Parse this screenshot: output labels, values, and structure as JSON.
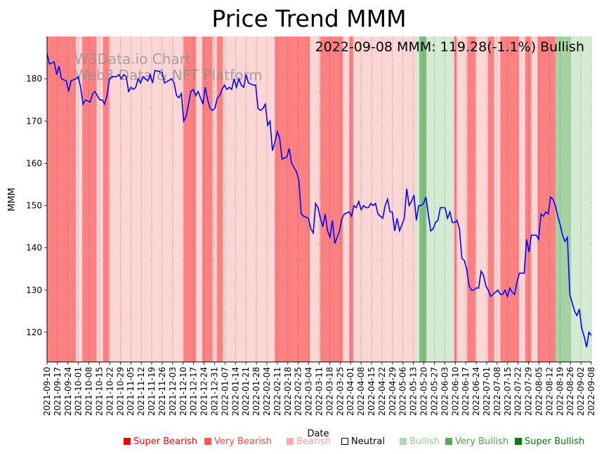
{
  "chart_data": {
    "type": "line",
    "title": "Price Trend MMM",
    "annotation": "2022-09-08 MMM: 119.28(-1.1%) Bullish",
    "watermark": [
      "W3Data.io Chart",
      "Web3 Data & NFT Platform"
    ],
    "xlabel": "Date",
    "ylabel": "MMM",
    "ylim": [
      113,
      190
    ],
    "yticks": [
      120,
      130,
      140,
      150,
      160,
      170,
      180
    ],
    "x_start": "2021-09-10",
    "x_end": "2022-09-08",
    "xtick_labels": [
      "2021-09-10",
      "2021-09-17",
      "2021-09-24",
      "2021-10-01",
      "2021-10-08",
      "2021-10-15",
      "2021-10-22",
      "2021-10-29",
      "2021-11-05",
      "2021-11-12",
      "2021-11-19",
      "2021-11-26",
      "2021-12-03",
      "2021-12-10",
      "2021-12-17",
      "2021-12-24",
      "2021-12-31",
      "2022-01-07",
      "2022-01-14",
      "2022-01-21",
      "2022-01-28",
      "2022-02-04",
      "2022-02-11",
      "2022-02-18",
      "2022-02-25",
      "2022-03-04",
      "2022-03-11",
      "2022-03-18",
      "2022-03-25",
      "2022-04-01",
      "2022-04-08",
      "2022-04-15",
      "2022-04-22",
      "2022-04-29",
      "2022-05-06",
      "2022-05-13",
      "2022-05-20",
      "2022-05-27",
      "2022-06-03",
      "2022-06-10",
      "2022-06-17",
      "2022-06-24",
      "2022-07-01",
      "2022-07-08",
      "2022-07-15",
      "2022-07-22",
      "2022-07-29",
      "2022-08-05",
      "2022-08-12",
      "2022-08-19",
      "2022-08-26",
      "2022-09-02",
      "2022-09-08"
    ],
    "series": [
      {
        "name": "MMM",
        "color": "#0000ff",
        "points": [
          [
            0,
            186
          ],
          [
            1,
            183.5
          ],
          [
            3,
            184
          ],
          [
            4,
            181
          ],
          [
            5,
            183
          ],
          [
            6,
            180
          ],
          [
            8,
            179.5
          ],
          [
            9,
            177
          ],
          [
            10,
            179.5
          ],
          [
            12,
            180
          ],
          [
            13,
            180.5
          ],
          [
            14,
            178
          ],
          [
            15,
            174
          ],
          [
            16,
            175
          ],
          [
            18,
            174.5
          ],
          [
            19,
            176.5
          ],
          [
            20,
            177
          ],
          [
            22,
            175
          ],
          [
            23,
            175
          ],
          [
            24,
            174
          ],
          [
            25,
            176
          ],
          [
            26,
            180
          ],
          [
            27,
            180.5
          ],
          [
            29,
            180.5
          ],
          [
            30,
            181
          ],
          [
            31,
            180
          ],
          [
            32,
            181
          ],
          [
            33,
            180.5
          ],
          [
            34,
            177
          ],
          [
            35,
            178
          ],
          [
            36,
            177.5
          ],
          [
            37,
            178
          ],
          [
            38,
            180
          ],
          [
            39,
            179
          ],
          [
            40,
            180.5
          ],
          [
            41,
            180
          ],
          [
            42,
            179.5
          ],
          [
            43,
            181
          ],
          [
            44,
            179
          ],
          [
            45,
            182
          ],
          [
            48,
            181.5
          ],
          [
            49,
            179
          ],
          [
            52,
            180
          ],
          [
            53,
            179
          ],
          [
            54,
            176
          ],
          [
            55,
            175.5
          ],
          [
            56,
            176.5
          ],
          [
            57,
            170
          ],
          [
            58,
            171
          ],
          [
            59,
            174
          ],
          [
            60,
            177
          ],
          [
            61,
            177.5
          ],
          [
            62,
            176
          ],
          [
            63,
            177
          ],
          [
            64,
            175.5
          ],
          [
            65,
            174
          ],
          [
            66,
            178
          ],
          [
            67,
            175
          ],
          [
            68,
            173
          ],
          [
            69,
            172.5
          ],
          [
            70,
            173
          ],
          [
            71,
            175.5
          ],
          [
            72,
            176
          ],
          [
            73,
            177.5
          ],
          [
            74,
            178.5
          ],
          [
            75,
            177.5
          ],
          [
            76,
            178
          ],
          [
            77,
            177.5
          ],
          [
            78,
            180
          ],
          [
            79,
            178
          ],
          [
            80,
            180
          ],
          [
            81,
            178.5
          ],
          [
            82,
            178
          ],
          [
            83,
            181
          ],
          [
            84,
            179
          ],
          [
            86,
            178.5
          ],
          [
            87,
            178.5
          ],
          [
            88,
            173
          ],
          [
            89,
            172.5
          ],
          [
            90,
            173
          ],
          [
            91,
            174
          ],
          [
            92,
            169
          ],
          [
            93,
            170
          ],
          [
            94,
            163
          ],
          [
            95,
            165
          ],
          [
            96,
            167.5
          ],
          [
            97,
            166
          ],
          [
            98,
            161
          ],
          [
            100,
            161.5
          ],
          [
            101,
            163.5
          ],
          [
            102,
            160
          ],
          [
            103,
            159
          ],
          [
            104,
            158
          ],
          [
            105,
            156
          ],
          [
            106,
            148
          ],
          [
            107,
            147.5
          ],
          [
            109,
            147
          ],
          [
            110,
            144.5
          ],
          [
            111,
            143.5
          ],
          [
            112,
            150.5
          ],
          [
            113,
            149.5
          ],
          [
            114,
            147
          ],
          [
            115,
            145
          ],
          [
            116,
            148
          ],
          [
            117,
            144
          ],
          [
            118,
            142.5
          ],
          [
            119,
            146.5
          ],
          [
            120,
            141
          ],
          [
            121,
            142.5
          ],
          [
            122,
            144
          ],
          [
            123,
            147
          ],
          [
            124,
            148
          ],
          [
            126,
            148.5
          ],
          [
            127,
            147.5
          ],
          [
            128,
            150
          ],
          [
            129,
            149.5
          ],
          [
            130,
            151
          ],
          [
            131,
            149
          ],
          [
            132,
            150
          ],
          [
            133,
            149.5
          ],
          [
            134,
            149.5
          ],
          [
            135,
            150.5
          ],
          [
            136,
            150
          ],
          [
            137,
            150.5
          ],
          [
            138,
            148
          ],
          [
            139,
            147.5
          ],
          [
            140,
            147
          ],
          [
            141,
            150
          ],
          [
            142,
            151.5
          ],
          [
            143,
            148.5
          ],
          [
            144,
            148.5
          ],
          [
            145,
            144
          ],
          [
            146,
            147
          ],
          [
            147,
            144
          ],
          [
            148,
            145.5
          ],
          [
            149,
            147
          ],
          [
            150,
            154
          ],
          [
            151,
            150
          ],
          [
            152,
            151
          ],
          [
            153,
            152.5
          ],
          [
            154,
            146.5
          ],
          [
            155,
            150
          ],
          [
            156,
            150
          ],
          [
            157,
            150.5
          ],
          [
            158,
            152
          ],
          [
            159,
            148
          ],
          [
            160,
            144
          ],
          [
            161,
            144.5
          ],
          [
            162,
            146
          ],
          [
            163,
            146.5
          ],
          [
            164,
            149.5
          ],
          [
            166,
            149.5
          ],
          [
            167,
            147
          ],
          [
            168,
            148.5
          ],
          [
            169,
            146
          ],
          [
            170,
            146
          ],
          [
            171,
            146.5
          ],
          [
            172,
            144.5
          ],
          [
            173,
            137.5
          ],
          [
            174,
            137
          ],
          [
            175,
            135
          ],
          [
            176,
            131
          ],
          [
            177,
            130
          ],
          [
            178,
            130
          ],
          [
            179,
            130.5
          ],
          [
            180,
            130.5
          ],
          [
            181,
            134.5
          ],
          [
            182,
            133.5
          ],
          [
            183,
            131
          ],
          [
            184,
            130
          ],
          [
            185,
            128.5
          ],
          [
            186,
            129
          ],
          [
            187,
            129.5
          ],
          [
            188,
            130
          ],
          [
            189,
            129
          ],
          [
            190,
            129
          ],
          [
            191,
            130
          ],
          [
            192,
            128.5
          ],
          [
            193,
            130.5
          ],
          [
            194,
            129.5
          ],
          [
            195,
            129
          ],
          [
            196,
            132
          ],
          [
            197,
            134
          ],
          [
            198,
            134
          ],
          [
            199,
            134
          ],
          [
            200,
            142
          ],
          [
            201,
            139
          ],
          [
            202,
            143
          ],
          [
            204,
            143
          ],
          [
            205,
            142
          ],
          [
            206,
            148
          ],
          [
            207,
            147.5
          ],
          [
            208,
            148.5
          ],
          [
            209,
            148
          ],
          [
            210,
            152
          ],
          [
            211,
            151.5
          ],
          [
            212,
            150
          ],
          [
            213,
            147.5
          ],
          [
            214,
            145.5
          ],
          [
            215,
            143
          ],
          [
            216,
            141.5
          ],
          [
            217,
            142.5
          ],
          [
            218,
            129
          ],
          [
            219,
            127
          ],
          [
            220,
            125
          ],
          [
            221,
            124
          ],
          [
            222,
            125.5
          ],
          [
            223,
            121
          ],
          [
            224,
            119
          ],
          [
            225,
            116.5
          ],
          [
            226,
            120
          ],
          [
            227,
            119.3
          ]
        ]
      }
    ],
    "sentiment_bands": [
      {
        "from": 0,
        "to": 14,
        "level": "very-bearish"
      },
      {
        "from": 14,
        "to": 17,
        "level": "bearish"
      },
      {
        "from": 17,
        "to": 24,
        "level": "very-bearish"
      },
      {
        "from": 24,
        "to": 27,
        "level": "bearish"
      },
      {
        "from": 27,
        "to": 30,
        "level": "very-bearish"
      },
      {
        "from": 30,
        "to": 66,
        "level": "bearish"
      },
      {
        "from": 66,
        "to": 72,
        "level": "very-bearish"
      },
      {
        "from": 72,
        "to": 75,
        "level": "bearish"
      },
      {
        "from": 75,
        "to": 80,
        "level": "very-bearish"
      },
      {
        "from": 80,
        "to": 82,
        "level": "bearish"
      },
      {
        "from": 82,
        "to": 85,
        "level": "very-bearish"
      },
      {
        "from": 85,
        "to": 110,
        "level": "bearish"
      },
      {
        "from": 110,
        "to": 127,
        "level": "very-bearish"
      },
      {
        "from": 127,
        "to": 132,
        "level": "bearish"
      },
      {
        "from": 132,
        "to": 143,
        "level": "very-bearish"
      },
      {
        "from": 143,
        "to": 146,
        "level": "bearish"
      },
      {
        "from": 146,
        "to": 148,
        "level": "very-bearish"
      },
      {
        "from": 148,
        "to": 183,
        "level": "bearish"
      },
      {
        "from": 183,
        "to": 186,
        "level": "very-bearish"
      },
      {
        "from": 186,
        "to": 190,
        "level": "bearish"
      },
      {
        "from": 190,
        "to": 198,
        "level": "very-bearish"
      },
      {
        "from": 198,
        "to": 203,
        "level": "bearish"
      },
      {
        "from": 203,
        "to": 207,
        "level": "very-bearish"
      },
      {
        "from": 207,
        "to": 213,
        "level": "bearish"
      },
      {
        "from": 213,
        "to": 216,
        "level": "very-bearish"
      },
      {
        "from": 216,
        "to": 219,
        "level": "bearish"
      },
      {
        "from": 219,
        "to": 228,
        "level": "very-bearish"
      },
      {
        "from": 228,
        "to": 231,
        "level": "bearish"
      },
      {
        "from": 231,
        "to": 234,
        "level": "very-bearish"
      },
      {
        "from": 234,
        "to": 237,
        "level": "bearish"
      },
      {
        "from": 237,
        "to": 248,
        "level": "very-bearish"
      },
      {
        "from": 248,
        "to": 250,
        "level": "bearish"
      },
      {
        "from": 250,
        "to": 257,
        "level": "very-bearish"
      },
      {
        "from": 257,
        "to": 260,
        "level": "bearish"
      },
      {
        "from": 260,
        "to": 263,
        "level": "very-bearish"
      },
      {
        "from": 263,
        "to": 263,
        "level": "bearish"
      }
    ],
    "legend": [
      {
        "label": "Super Bearish",
        "color": "#ff0000",
        "text_color": "#ff0000"
      },
      {
        "label": "Very Bearish",
        "color": "#ff5555",
        "text_color": "#ff4444"
      },
      {
        "label": "Bearish",
        "color": "#ffaaaa",
        "text_color": "#ff9999"
      },
      {
        "label": "Neutral",
        "color": "#ffffff",
        "text_color": "#000000"
      },
      {
        "label": "Bullish",
        "color": "#aaddaa",
        "text_color": "#99cc99"
      },
      {
        "label": "Very Bullish",
        "color": "#55aa55",
        "text_color": "#44aa44"
      },
      {
        "label": "Super Bullish",
        "color": "#008000",
        "text_color": "#008000"
      }
    ],
    "band_colors": {
      "very-bearish": "#ff8080",
      "bearish": "#ffd6d6",
      "bullish": "#d3ead3",
      "very-bullish": "#a3d3a3",
      "super-bullish": "#7fbf7f"
    },
    "bull_bands": [
      {
        "from": 0.677,
        "to": 0.684,
        "level": "bullish"
      },
      {
        "from": 0.684,
        "to": 0.697,
        "level": "super-bullish"
      },
      {
        "from": 0.697,
        "to": 0.745,
        "level": "bullish"
      },
      {
        "from": 0.745,
        "to": 0.748,
        "level": "bearish"
      },
      {
        "from": 0.934,
        "to": 0.962,
        "level": "very-bullish"
      },
      {
        "from": 0.962,
        "to": 1.0,
        "level": "bullish"
      }
    ]
  }
}
